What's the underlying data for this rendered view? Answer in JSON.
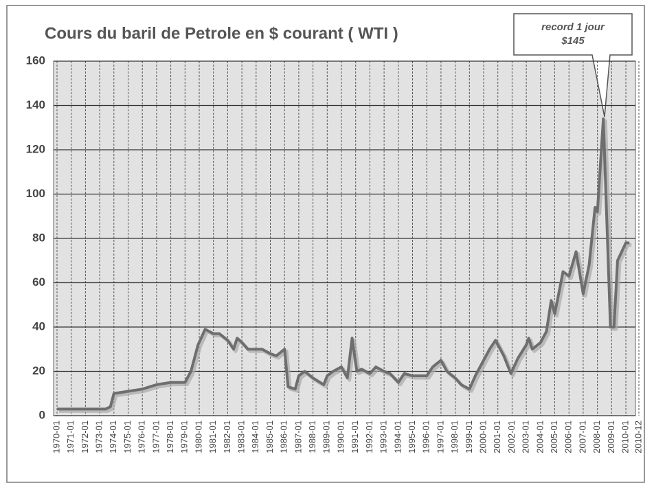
{
  "chart_data": {
    "type": "line",
    "title": "Cours du baril de Petrole en $ courant ( WTI )",
    "annotation": [
      "record 1 jour",
      "$145"
    ],
    "x": [
      "1970-01",
      "1973-06",
      "1973-10",
      "1974-01",
      "1975-01",
      "1976-01",
      "1977-01",
      "1978-01",
      "1979-01",
      "1979-06",
      "1979-12",
      "1980-06",
      "1981-01",
      "1981-06",
      "1982-01",
      "1982-06",
      "1982-09",
      "1983-01",
      "1983-06",
      "1984-01",
      "1984-06",
      "1985-01",
      "1985-06",
      "1986-01",
      "1986-04",
      "1986-10",
      "1987-01",
      "1987-06",
      "1988-01",
      "1988-10",
      "1989-01",
      "1989-06",
      "1990-01",
      "1990-06",
      "1990-10",
      "1991-02",
      "1991-06",
      "1992-01",
      "1992-06",
      "1993-01",
      "1993-06",
      "1994-01",
      "1994-06",
      "1995-01",
      "1995-06",
      "1996-01",
      "1996-06",
      "1997-01",
      "1997-06",
      "1998-01",
      "1998-06",
      "1999-01",
      "1999-06",
      "2000-01",
      "2000-06",
      "2000-11",
      "2001-06",
      "2001-12",
      "2002-06",
      "2003-01",
      "2003-03",
      "2003-06",
      "2004-01",
      "2004-06",
      "2004-10",
      "2005-01",
      "2005-08",
      "2006-01",
      "2006-07",
      "2007-01",
      "2007-06",
      "2007-11",
      "2008-01",
      "2008-06",
      "2008-12",
      "2009-03",
      "2009-06",
      "2010-01",
      "2010-04"
    ],
    "series": [
      {
        "color": "#6e6e6e",
        "values": [
          3,
          3,
          4,
          10,
          11,
          12,
          14,
          15,
          15,
          20,
          32,
          39,
          37,
          37,
          34,
          30,
          35,
          33,
          30,
          30,
          30,
          28,
          27,
          30,
          13,
          12,
          18,
          20,
          17,
          14,
          18,
          20,
          22,
          17,
          35,
          20,
          21,
          19,
          22,
          20,
          19,
          15,
          19,
          18,
          18,
          18,
          22,
          25,
          20,
          17,
          14,
          12,
          18,
          25,
          30,
          34,
          27,
          19,
          26,
          32,
          35,
          30,
          33,
          38,
          52,
          46,
          65,
          63,
          74,
          55,
          68,
          94,
          92,
          134,
          40,
          40,
          70,
          78,
          78
        ]
      }
    ],
    "xlim": [
      "1970-01",
      "2010-12"
    ],
    "xticks": [
      "1970-01",
      "1971-01",
      "1972-01",
      "1973-01",
      "1974-01",
      "1975-01",
      "1976-01",
      "1977-01",
      "1978-01",
      "1979-01",
      "1980-01",
      "1981-01",
      "1982-01",
      "1983-01",
      "1984-01",
      "1985-01",
      "1986-01",
      "1987-01",
      "1988-01",
      "1989-01",
      "1990-01",
      "1991-01",
      "1992-01",
      "1993-01",
      "1994-01",
      "1995-01",
      "1996-01",
      "1997-01",
      "1998-01",
      "1999-01",
      "2000-01",
      "2001-01",
      "2002-01",
      "2003-01",
      "2004-01",
      "2005-01",
      "2006-01",
      "2007-01",
      "2008-01",
      "2009-01",
      "2010-01",
      "2010-12"
    ],
    "ylim": [
      0,
      160
    ],
    "yticks": [
      0,
      20,
      40,
      60,
      80,
      100,
      120,
      140,
      160
    ],
    "grid": true
  }
}
